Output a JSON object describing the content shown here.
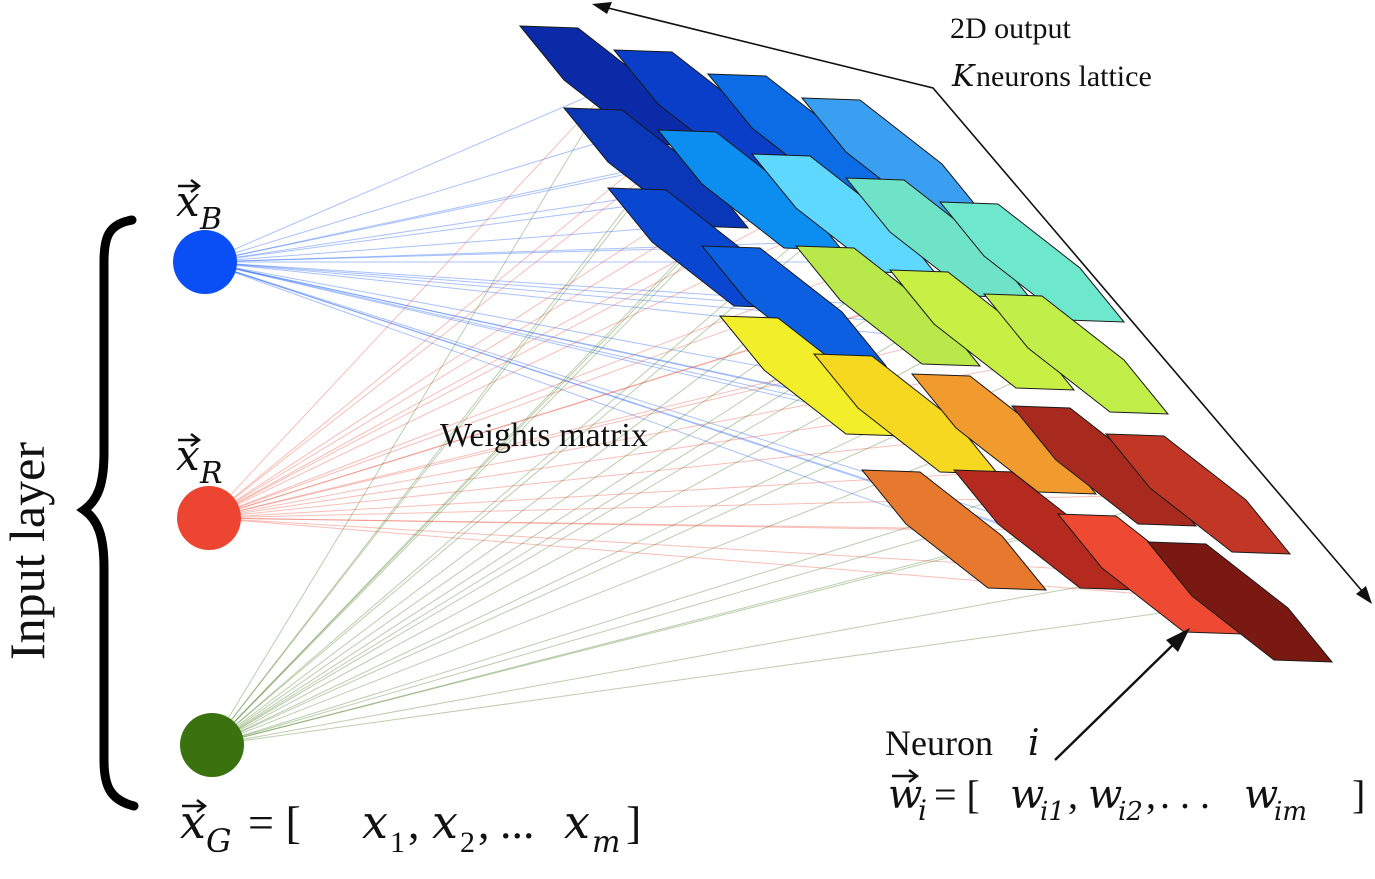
{
  "labels": {
    "input_layer": "Input layer",
    "weights_matrix": "Weights matrix",
    "output_line1": "2D output",
    "output_k": "K",
    "output_line2_rest": " neurons lattice",
    "neuron_word": "Neuron ",
    "neuron_index": "i"
  },
  "inputs": [
    {
      "id": "B",
      "label_var": "x",
      "label_sub": "B",
      "color": "#0a4ff5"
    },
    {
      "id": "R",
      "label_var": "x",
      "label_sub": "R",
      "color": "#ec4532"
    },
    {
      "id": "G",
      "label_var": "x",
      "label_sub": "G",
      "color": "#3a7210"
    }
  ],
  "input_vector": {
    "var": "x",
    "sub": "G",
    "rhs_open": " = [",
    "x1": "x",
    "s1": "1",
    "x2": "x",
    "s2": "2",
    "ellipsis": "...",
    "xm": "x",
    "sm": "m",
    "close": "]"
  },
  "weight_vector": {
    "var": "w",
    "sub": "i",
    "eq": " = [",
    "a": "w",
    "as": "i1",
    "b": "w",
    "bs": "i2",
    "dots": " . . . ",
    "c": "w",
    "cs": "im",
    "close": "]"
  },
  "lattice_colors": [
    [
      "#0b2aa8",
      "#0a3ec9",
      "#0b6ce6",
      "#3a9ff0"
    ],
    [
      "#0a36b8",
      "#0b8ef0",
      "#5fd8ff",
      "#6fe3c8",
      "#6ee8cc"
    ],
    [
      "#0a47d0",
      "#0b5fe0",
      "#b8e84a",
      "#c8ef44",
      "#c2ee4a"
    ],
    [
      "#f3ee2a",
      "#f5d81f",
      "#f19a2e",
      "#a82a1e",
      "#c23626"
    ],
    [
      "#e6792e",
      "#b52a1e",
      "#ee4a33",
      "#7a1812"
    ]
  ],
  "colors": {
    "blue": "#0a4ff5",
    "red": "#ec4532",
    "green": "#3a7210"
  }
}
